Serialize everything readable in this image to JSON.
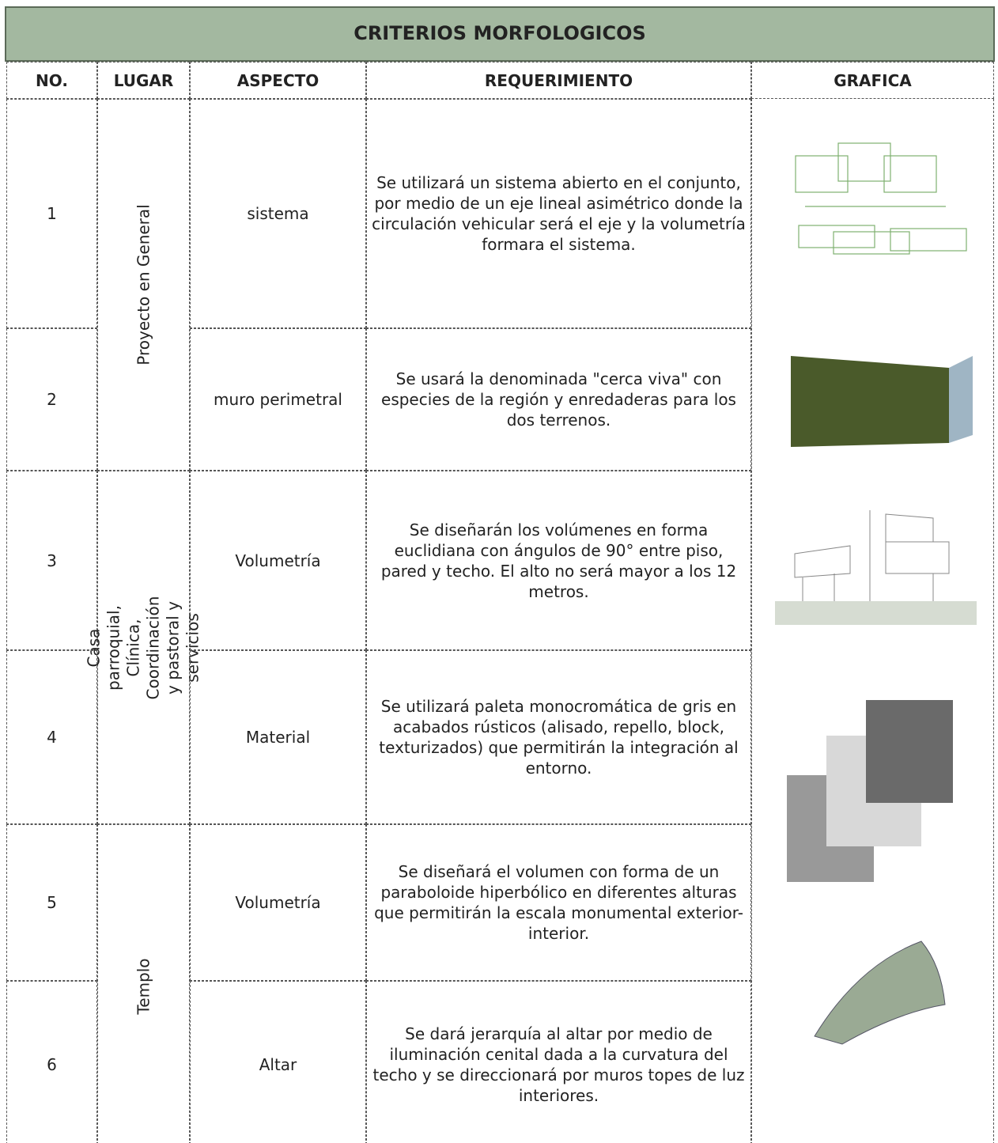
{
  "header": {
    "title": "CRITERIOS MORFOLOGICOS"
  },
  "table": {
    "columns": [
      "NO.",
      "LUGAR",
      "ASPECTO",
      "REQUERIMIENTO",
      "GRAFICA"
    ],
    "places": [
      "Proyecto en General",
      "Casa parroquial, Clínica, Coordinación y pastoral y servicios",
      "Templo"
    ],
    "rows": [
      {
        "no": "1",
        "aspect": "sistema",
        "requirement": "Se utilizará un sistema abierto en el conjunto, por medio de un eje lineal asimétrico donde la circulación vehicular será el eje y la volumetría formara el sistema."
      },
      {
        "no": "2",
        "aspect": "muro perimetral",
        "requirement": "Se usará la denominada \"cerca viva\" con especies de la región y enredaderas para los dos terrenos."
      },
      {
        "no": "3",
        "aspect": "Volumetría",
        "requirement": "Se diseñarán los volúmenes en forma euclidiana con ángulos de 90° entre piso, pared y techo. El alto no será mayor a los 12 metros."
      },
      {
        "no": "4",
        "aspect": "Material",
        "requirement": "Se utilizará paleta monocromática de gris en acabados rústicos (alisado, repello, block, texturizados) que permitirán la integración al entorno."
      },
      {
        "no": "5",
        "aspect": "Volumetría",
        "requirement": "Se diseñará el volumen con forma de un paraboloide hiperbólico en diferentes alturas que permitirán la escala monumental exterior-interior."
      },
      {
        "no": "6",
        "aspect": "Altar",
        "requirement": "Se dará jerarquía al altar por medio de iluminación cenital dada a la curvatura del techo y se direccionará por muros topes de luz interiores."
      }
    ]
  }
}
